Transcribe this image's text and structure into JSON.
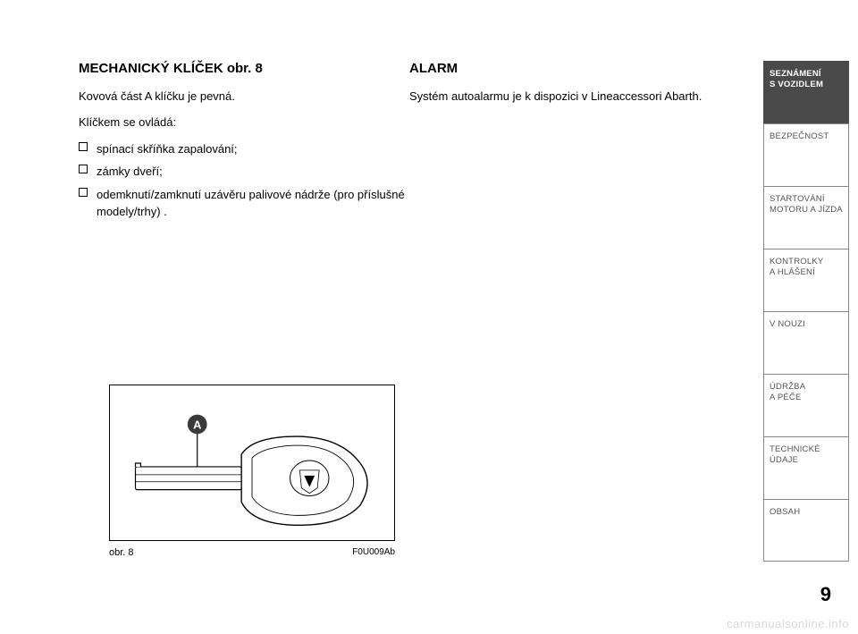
{
  "left": {
    "heading": "MECHANICKÝ KLÍČEK obr. 8",
    "para1": "Kovová část A klíčku je pevná.",
    "para2": "Klíčkem se ovládá:",
    "bullets": [
      "spínací skříňka zapalování;",
      "zámky dveří;",
      "odemknutí/zamknutí uzávěru palivové nádrže (pro příslušné modely/trhy) ."
    ]
  },
  "right": {
    "heading": "ALARM",
    "para1": "Systém autoalarmu je k dispozici v Lineaccessori Abarth."
  },
  "figure": {
    "caption_left": "obr. 8",
    "caption_right": "F0U009Ab",
    "pointer_label": "A",
    "colors": {
      "stroke": "#000000",
      "fill": "#ffffff",
      "circle_fill": "#3a3a3a",
      "circle_text": "#ffffff"
    }
  },
  "sidebar": {
    "tabs": [
      {
        "label": "SEZNÁMENÍ\nS VOZIDLEM",
        "active": true
      },
      {
        "label": "BEZPEČNOST",
        "active": false
      },
      {
        "label": "STARTOVÁNÍ\nMOTORU A JÍZDA",
        "active": false
      },
      {
        "label": "KONTROLKY\nA HLÁŠENÍ",
        "active": false
      },
      {
        "label": "V NOUZI",
        "active": false
      },
      {
        "label": "ÚDRŽBA\nA PÉČE",
        "active": false
      },
      {
        "label": "TECHNICKÉ\nÚDAJE",
        "active": false
      },
      {
        "label": "OBSAH",
        "active": false
      }
    ]
  },
  "page_number": "9",
  "watermark": "carmanualsonline.info"
}
